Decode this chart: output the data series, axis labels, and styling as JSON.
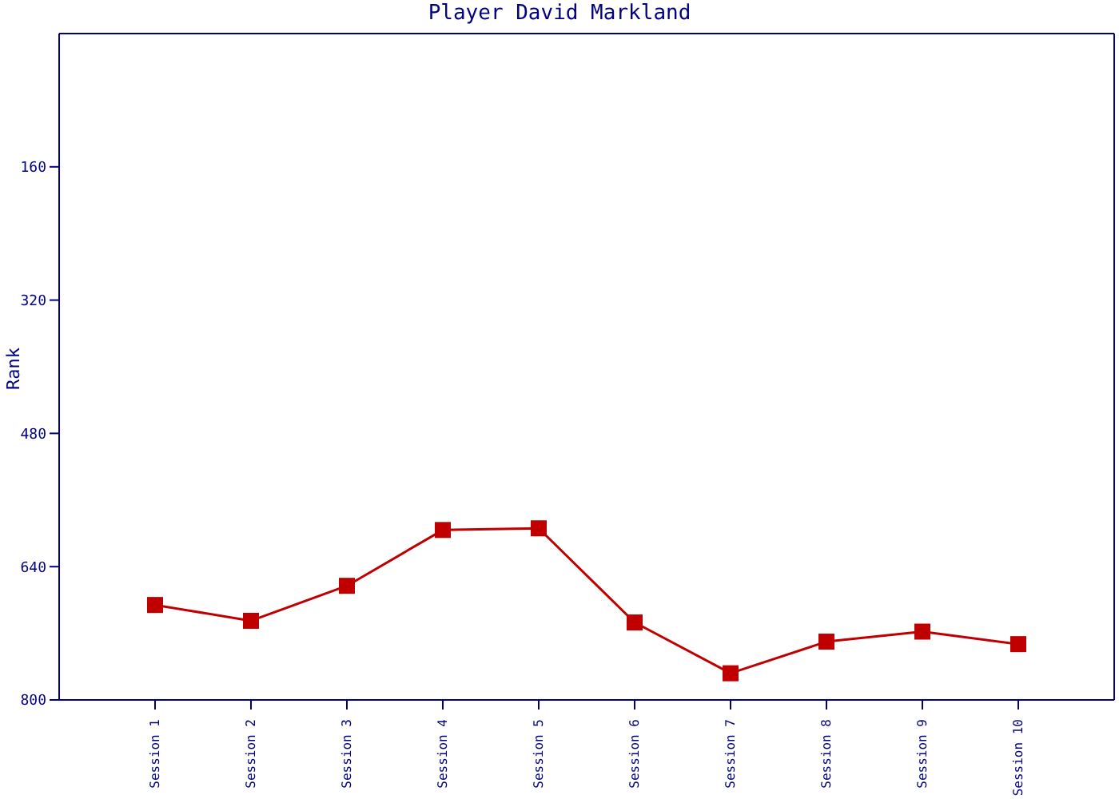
{
  "chart_data": {
    "type": "line",
    "title": "Player David Markland",
    "ylabel": "Rank",
    "categories": [
      "Session 1",
      "Session 2",
      "Session 3",
      "Session 4",
      "Session 5",
      "Session 6",
      "Session 7",
      "Session 8",
      "Session 9",
      "Session 10"
    ],
    "series": [
      {
        "color": "#c00000",
        "values": [
          686,
          705,
          663,
          596,
          594,
          707,
          768,
          730,
          718,
          733
        ]
      }
    ],
    "ylim": [
      800,
      0
    ],
    "yticks": [
      160,
      320,
      480,
      640,
      800
    ],
    "grid": false,
    "legend": false,
    "marker": "square",
    "line_style": "solid"
  }
}
